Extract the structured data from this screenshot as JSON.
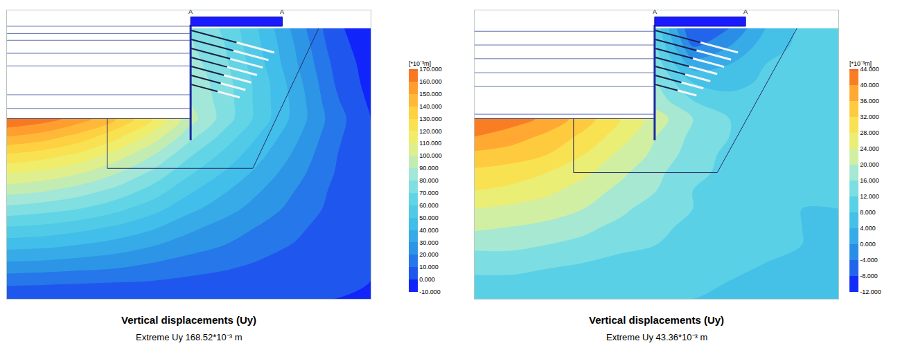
{
  "chart_data": [
    {
      "type": "contour",
      "title": "Vertical displacements (Uy)",
      "subtitle": "Extreme Uy 168.52*10⁻³ m",
      "colorbar_title": "[*10⁻³m]",
      "annotations": [
        "A",
        "A"
      ],
      "tick_labels": false,
      "grid": false,
      "xlim": [
        0,
        100
      ],
      "ylim": [
        0,
        80
      ],
      "x": [
        0,
        10,
        20,
        30,
        40,
        50,
        60,
        70,
        80,
        90,
        100
      ],
      "y": [
        0,
        5,
        10,
        15,
        20,
        25,
        30,
        35,
        40,
        45,
        50,
        55,
        60,
        65,
        70,
        75
      ],
      "z": [
        [
          0,
          0,
          0,
          0,
          0,
          0,
          0,
          0,
          0,
          0,
          0
        ],
        [
          14,
          13,
          12,
          11,
          10,
          8,
          6,
          4,
          3,
          1,
          0
        ],
        [
          29,
          28,
          26,
          24,
          20,
          16,
          13,
          9,
          6,
          3,
          0
        ],
        [
          44,
          43,
          40,
          36,
          31,
          25,
          20,
          14,
          9,
          4,
          0
        ],
        [
          60,
          58,
          54,
          49,
          42,
          33,
          26,
          19,
          12,
          5,
          0
        ],
        [
          77,
          74,
          70,
          63,
          54,
          43,
          34,
          25,
          16,
          7,
          0
        ],
        [
          94,
          91,
          85,
          77,
          66,
          52,
          41,
          30,
          19,
          8,
          0
        ],
        [
          111,
          107,
          101,
          91,
          78,
          62,
          49,
          36,
          23,
          10,
          0
        ],
        [
          129,
          125,
          118,
          106,
          91,
          72,
          57,
          42,
          27,
          11,
          0
        ],
        [
          150,
          145,
          136,
          123,
          106,
          84,
          66,
          48,
          31,
          13,
          0
        ],
        [
          170,
          165,
          155,
          140,
          120,
          95,
          75,
          55,
          35,
          15,
          0
        ],
        [
          null,
          null,
          null,
          null,
          null,
          90,
          75,
          55,
          35,
          12,
          -2
        ],
        [
          null,
          null,
          null,
          null,
          null,
          88,
          74,
          55,
          33,
          10,
          -4
        ],
        [
          null,
          null,
          null,
          null,
          null,
          85,
          72,
          52,
          30,
          8,
          -5
        ],
        [
          null,
          null,
          null,
          null,
          null,
          82,
          70,
          50,
          28,
          5,
          -6
        ],
        [
          null,
          null,
          null,
          null,
          null,
          80,
          68,
          48,
          25,
          3,
          -8
        ]
      ],
      "zlim": [
        -10,
        170
      ],
      "zticks": [
        {
          "value": 170,
          "label": "170.000"
        },
        {
          "value": 160,
          "label": "160.000"
        },
        {
          "value": 150,
          "label": "150.000"
        },
        {
          "value": 140,
          "label": "140.000"
        },
        {
          "value": 130,
          "label": "130.000"
        },
        {
          "value": 120,
          "label": "120.000"
        },
        {
          "value": 110,
          "label": "110.000"
        },
        {
          "value": 100,
          "label": "100.000"
        },
        {
          "value": 90,
          "label": "90.000"
        },
        {
          "value": 80,
          "label": "80.000"
        },
        {
          "value": 70,
          "label": "70.000"
        },
        {
          "value": 60,
          "label": "60.000"
        },
        {
          "value": 50,
          "label": "50.000"
        },
        {
          "value": 40,
          "label": "40.000"
        },
        {
          "value": 30,
          "label": "30.000"
        },
        {
          "value": 20,
          "label": "20.000"
        },
        {
          "value": 10,
          "label": "10.000"
        },
        {
          "value": 0,
          "label": "0.000"
        },
        {
          "value": -10,
          "label": "-10.000"
        }
      ]
    },
    {
      "type": "contour",
      "title": "Vertical displacements (Uy)",
      "subtitle": "Extreme Uy 43.36*10⁻³ m",
      "colorbar_title": "[*10⁻³m]",
      "annotations": [
        "A",
        "A"
      ],
      "tick_labels": false,
      "grid": false,
      "xlim": [
        0,
        100
      ],
      "ylim": [
        0,
        80
      ],
      "x": [
        0,
        10,
        20,
        30,
        40,
        50,
        60,
        70,
        80,
        90,
        100
      ],
      "y": [
        0,
        5,
        10,
        15,
        20,
        25,
        30,
        35,
        40,
        45,
        50,
        55,
        60,
        65,
        70,
        75
      ],
      "z": [
        [
          8,
          8,
          8,
          8,
          8,
          8,
          8,
          8,
          8,
          8,
          8
        ],
        [
          11,
          11,
          10,
          10,
          10,
          9,
          9,
          8,
          8,
          8,
          8
        ],
        [
          14,
          14,
          13,
          12,
          11,
          10,
          9,
          9,
          8,
          8,
          8
        ],
        [
          17,
          17,
          16,
          15,
          13,
          12,
          10,
          9,
          9,
          8,
          8
        ],
        [
          21,
          20,
          19,
          17,
          15,
          13,
          11,
          9,
          9,
          8,
          8
        ],
        [
          24,
          23,
          22,
          20,
          17,
          14,
          12,
          10,
          9,
          8,
          8
        ],
        [
          28,
          27,
          25,
          22,
          19,
          16,
          12,
          10,
          9,
          9,
          9
        ],
        [
          31,
          30,
          28,
          25,
          21,
          17,
          13,
          11,
          9,
          9,
          9
        ],
        [
          35,
          34,
          32,
          28,
          23,
          19,
          14,
          11,
          10,
          9,
          9
        ],
        [
          40,
          38,
          35,
          31,
          26,
          20,
          15,
          12,
          10,
          9,
          9
        ],
        [
          44,
          42,
          39,
          34,
          28,
          22,
          16,
          12,
          10,
          9,
          9
        ],
        [
          null,
          null,
          null,
          null,
          null,
          18,
          12,
          10,
          10,
          9,
          9
        ],
        [
          null,
          null,
          null,
          null,
          null,
          16,
          8,
          6,
          9,
          9,
          9
        ],
        [
          null,
          null,
          null,
          null,
          null,
          14,
          2,
          4,
          8,
          9,
          9
        ],
        [
          null,
          null,
          null,
          null,
          null,
          12,
          -4,
          0,
          6,
          9,
          9
        ],
        [
          null,
          null,
          null,
          null,
          null,
          10,
          -8,
          -4,
          4,
          9,
          9
        ]
      ],
      "zlim": [
        -12,
        44
      ],
      "zticks": [
        {
          "value": 44,
          "label": "44.000"
        },
        {
          "value": 40,
          "label": "40.000"
        },
        {
          "value": 36,
          "label": "36.000"
        },
        {
          "value": 32,
          "label": "32.000"
        },
        {
          "value": 28,
          "label": "28.000"
        },
        {
          "value": 24,
          "label": "24.000"
        },
        {
          "value": 20,
          "label": "20.000"
        },
        {
          "value": 16,
          "label": "16.000"
        },
        {
          "value": 12,
          "label": "12.000"
        },
        {
          "value": 8,
          "label": "8.000"
        },
        {
          "value": 4,
          "label": "4.000"
        },
        {
          "value": 0,
          "label": "0.000"
        },
        {
          "value": -4,
          "label": "-4.000"
        },
        {
          "value": -8,
          "label": "-8.000"
        },
        {
          "value": -12,
          "label": "-12.000"
        }
      ]
    }
  ]
}
